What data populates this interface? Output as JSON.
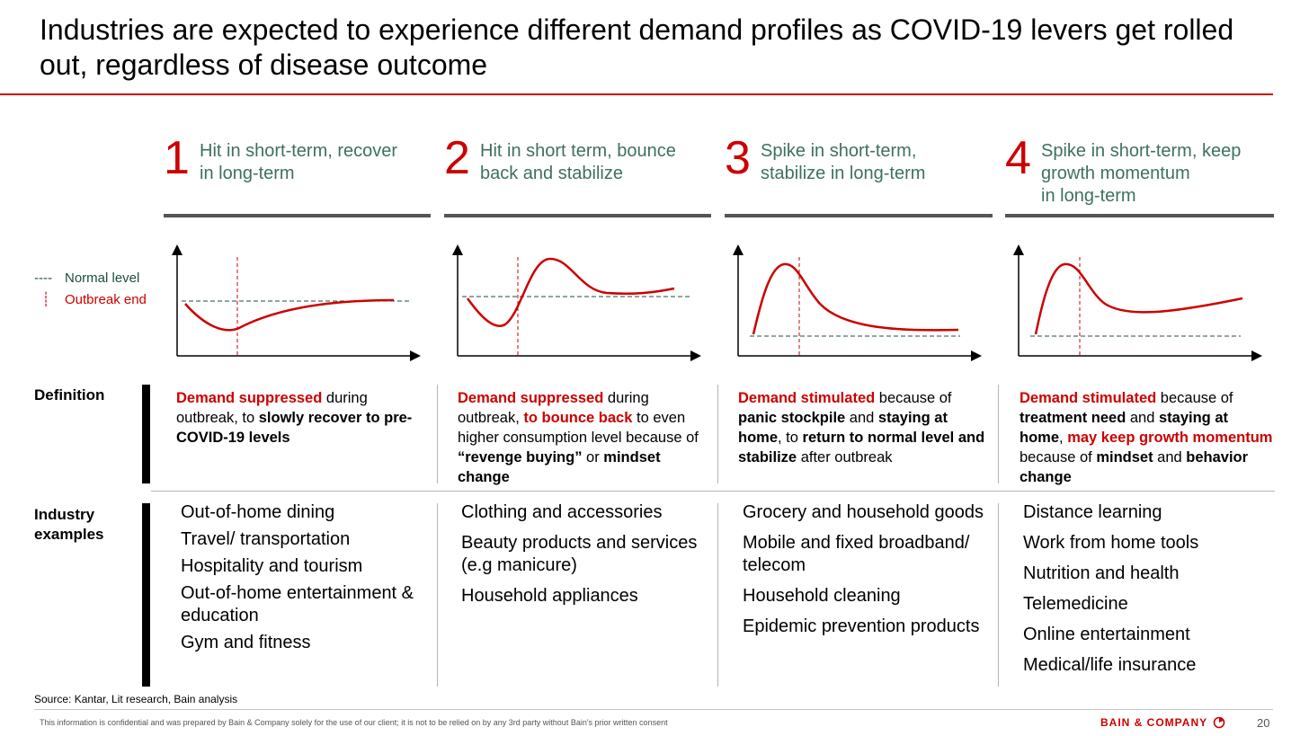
{
  "title": "Industries are expected to experience different demand profiles as COVID-19 levers get rolled out, regardless of disease outcome",
  "legend": {
    "normal_swatch": "----",
    "normal_label": "Normal level",
    "outbreak_swatch": "┊",
    "outbreak_label": "Outbreak end"
  },
  "row_labels": {
    "definition": "Definition",
    "industry_line1": "Industry",
    "industry_line2": "examples"
  },
  "columns": [
    {
      "number": "1",
      "description": [
        "Hit in short-term, recover",
        "in long-term"
      ],
      "definition": [
        {
          "t": "Demand suppressed",
          "s": "r"
        },
        {
          "t": " during outbreak, to ",
          "s": ""
        },
        {
          "t": "slowly recover to pre-COVID-19 levels",
          "s": "b"
        }
      ],
      "examples": [
        "Out-of-home dining",
        "Travel/ transportation",
        "Hospitality and tourism",
        "Out-of-home entertainment & education",
        "Gym and fitness"
      ]
    },
    {
      "number": "2",
      "description": [
        "Hit in short term, bounce",
        "back and stabilize"
      ],
      "definition": [
        {
          "t": "Demand suppressed",
          "s": "r"
        },
        {
          "t": " during outbreak, ",
          "s": ""
        },
        {
          "t": "to bounce back",
          "s": "r"
        },
        {
          "t": " to even higher consumption level because of ",
          "s": ""
        },
        {
          "t": "“revenge buying”",
          "s": "b"
        },
        {
          "t": " or ",
          "s": ""
        },
        {
          "t": "mindset change",
          "s": "b"
        }
      ],
      "examples": [
        "Clothing and accessories",
        "Beauty products and services (e.g manicure)",
        "Household appliances"
      ]
    },
    {
      "number": "3",
      "description": [
        "Spike in short-term,",
        "stabilize in long-term"
      ],
      "definition": [
        {
          "t": "Demand stimulated",
          "s": "r"
        },
        {
          "t": " because of ",
          "s": ""
        },
        {
          "t": "panic stockpile",
          "s": "b"
        },
        {
          "t": " and ",
          "s": ""
        },
        {
          "t": "staying at home",
          "s": "b"
        },
        {
          "t": ", to ",
          "s": ""
        },
        {
          "t": "return to normal level and stabilize",
          "s": "b"
        },
        {
          "t": " after outbreak",
          "s": ""
        }
      ],
      "examples": [
        "Grocery and household goods",
        "Mobile and fixed broadband/ telecom",
        "Household cleaning",
        "Epidemic prevention products"
      ]
    },
    {
      "number": "4",
      "description": [
        "Spike in short-term, keep",
        "growth momentum",
        "in long-term"
      ],
      "definition": [
        {
          "t": "Demand stimulated",
          "s": "r"
        },
        {
          "t": " because of ",
          "s": ""
        },
        {
          "t": "treatment need",
          "s": "b"
        },
        {
          "t": " and ",
          "s": ""
        },
        {
          "t": "staying at home",
          "s": "b"
        },
        {
          "t": ", ",
          "s": ""
        },
        {
          "t": "may keep growth momentum",
          "s": "r"
        },
        {
          "t": " because of ",
          "s": ""
        },
        {
          "t": "mindset",
          "s": "b"
        },
        {
          "t": " and ",
          "s": ""
        },
        {
          "t": "behavior change",
          "s": "b"
        }
      ],
      "examples": [
        "Distance learning",
        "Work from home tools",
        "Nutrition and health",
        "Telemedicine",
        "Online entertainment",
        "Medical/life insurance"
      ]
    }
  ],
  "source": "Source: Kantar, Lit research, Bain analysis",
  "disclaimer": "This information is confidential and was prepared by Bain & Company solely for the use of our client; it is not to be relied on by any 3rd party without Bain's prior written consent",
  "logo_text": "BAIN & COMPANY",
  "page_number": "20",
  "colors": {
    "accent_red": "#cc0000",
    "header_green": "#3e7060",
    "normal_line": "#1f4e3d"
  }
}
